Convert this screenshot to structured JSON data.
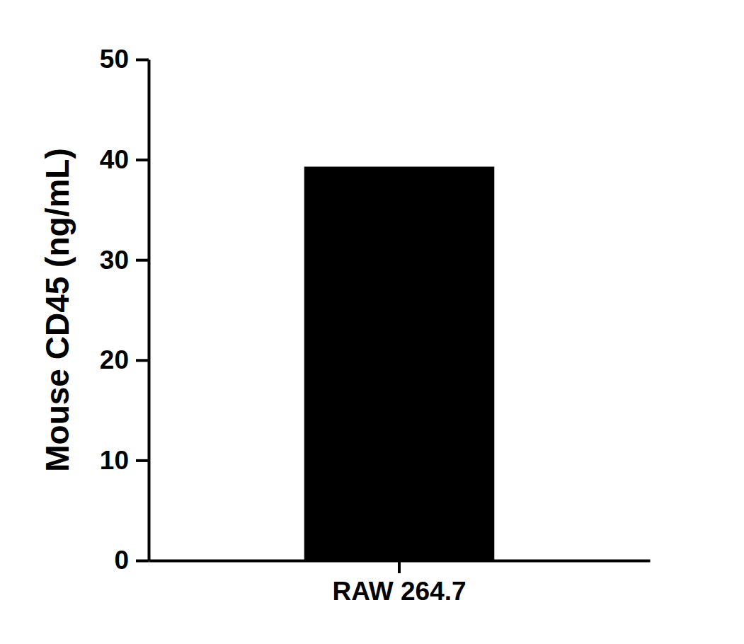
{
  "chart_data": {
    "type": "bar",
    "ylabel": "Mouse CD45 (ng/mL)",
    "categories": [
      "RAW 264.7"
    ],
    "values": [
      39.3
    ],
    "color": "#000000",
    "ylim": [
      0,
      50
    ],
    "yticks": [
      0,
      10,
      20,
      30,
      40,
      50
    ],
    "grid": false
  }
}
